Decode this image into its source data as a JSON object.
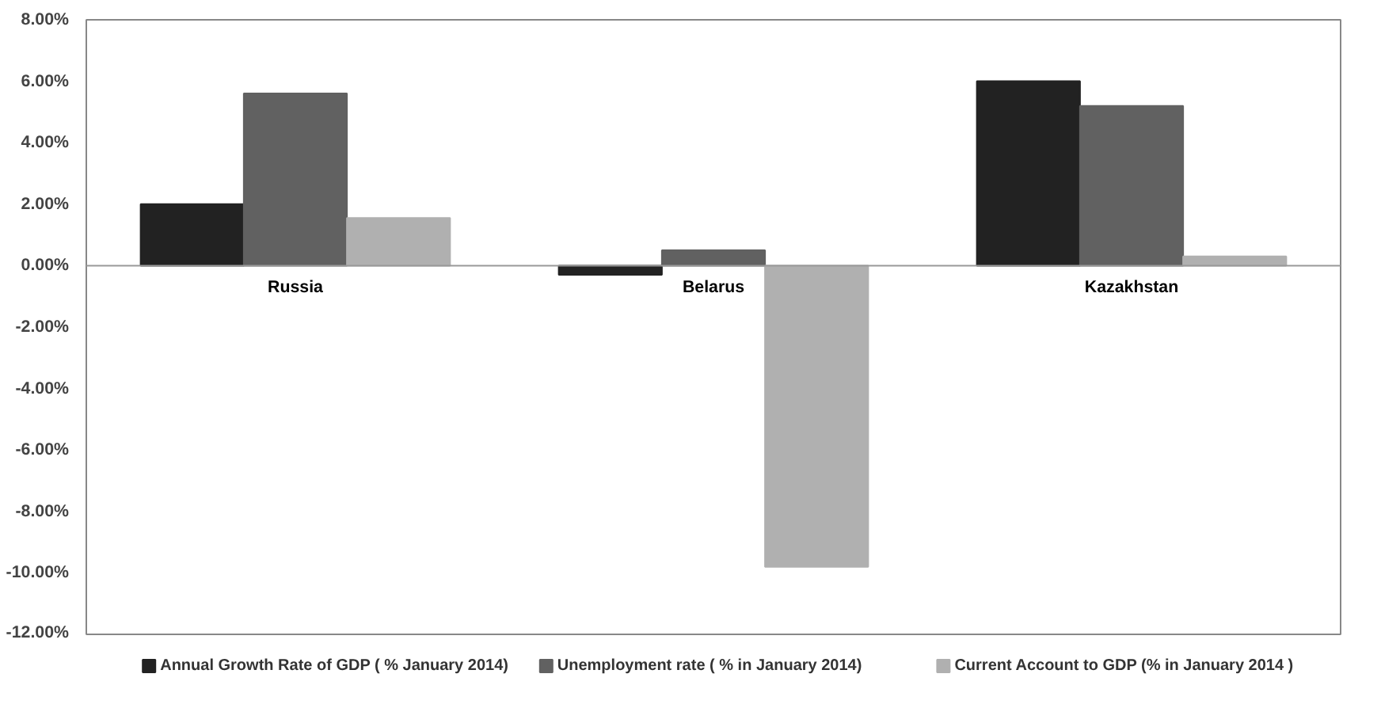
{
  "chart_data": {
    "type": "bar",
    "categories": [
      "Russia",
      "Belarus",
      "Kazakhstan"
    ],
    "series": [
      {
        "name": "Annual Growth Rate of GDP ( % January 2014)",
        "color": "#222222",
        "values": [
          2.0,
          -0.3,
          6.0
        ]
      },
      {
        "name": "Unemployment rate ( % in January 2014)",
        "color": "#616161",
        "values": [
          5.6,
          0.5,
          5.2
        ]
      },
      {
        "name": "Current Account to GDP (% in January 2014 )",
        "color": "#b0b0b0",
        "values": [
          1.55,
          -9.8,
          0.3
        ]
      }
    ],
    "ylim": [
      -12,
      8
    ],
    "yticks": [
      {
        "value": -12,
        "label": "-12.00%"
      },
      {
        "value": -10,
        "label": "-10.00%"
      },
      {
        "value": -8,
        "label": "-8.00%"
      },
      {
        "value": -6,
        "label": "-6.00%"
      },
      {
        "value": -4,
        "label": "-4.00%"
      },
      {
        "value": -2,
        "label": "-2.00%"
      },
      {
        "value": 0,
        "label": "0.00%"
      },
      {
        "value": 2,
        "label": "2.00%"
      },
      {
        "value": 4,
        "label": "4.00%"
      },
      {
        "value": 6,
        "label": "6.00%"
      },
      {
        "value": 8,
        "label": "8.00%"
      }
    ],
    "grid": false,
    "legend": "bottom"
  }
}
